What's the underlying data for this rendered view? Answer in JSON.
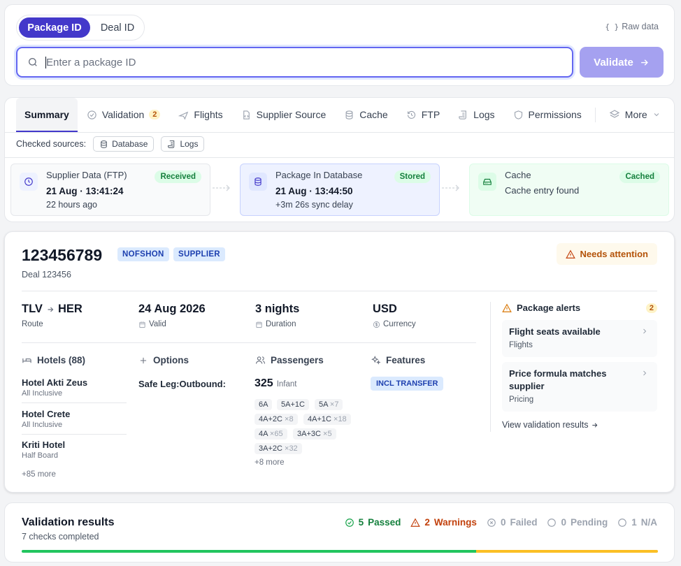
{
  "search": {
    "mode_tabs": [
      "Package ID",
      "Deal ID"
    ],
    "raw_data_label": "Raw data",
    "placeholder": "Enter a package ID",
    "value": "",
    "validate_label": "Validate"
  },
  "tabs": {
    "items": [
      "Summary",
      "Validation",
      "Flights",
      "Supplier Source",
      "Cache",
      "FTP",
      "Logs",
      "Permissions"
    ],
    "validation_count": "2",
    "more_label": "More"
  },
  "sources": {
    "label": "Checked sources:",
    "chips": [
      "Database",
      "Logs"
    ]
  },
  "stages": [
    {
      "title": "Supplier Data (FTP)",
      "time": "21 Aug · 13:41:24",
      "sub": "22 hours ago",
      "badge": "Received"
    },
    {
      "title": "Package In Database",
      "time": "21 Aug · 13:44:50",
      "sub": "+3m 26s sync delay",
      "badge": "Stored"
    },
    {
      "title": "Cache",
      "sub": "Cache entry found",
      "badge": "Cached"
    }
  ],
  "package": {
    "id": "123456789",
    "tags": [
      "NOFSHON",
      "SUPPLIER"
    ],
    "deal": "Deal 123456",
    "attention": "Needs attention",
    "route": {
      "from": "TLV",
      "to": "HER",
      "label": "Route"
    },
    "valid": {
      "value": "24 Aug 2026",
      "label": "Valid"
    },
    "duration": {
      "value": "3 nights",
      "label": "Duration"
    },
    "currency": {
      "value": "USD",
      "label": "Currency"
    },
    "hotels": {
      "title": "Hotels (88)",
      "items": [
        {
          "name": "Hotel Akti Zeus",
          "board": "All Inclusive"
        },
        {
          "name": "Hotel Crete",
          "board": "All Inclusive"
        },
        {
          "name": "Kriti Hotel",
          "board": "Half Board"
        }
      ],
      "more": "+85 more"
    },
    "options": {
      "title": "Options",
      "value": "Safe Leg:Outbound:"
    },
    "passengers": {
      "title": "Passengers",
      "count": "325",
      "count_label": "Infant",
      "chips": [
        {
          "label": "6A",
          "mult": ""
        },
        {
          "label": "5A+1C",
          "mult": ""
        },
        {
          "label": "5A",
          "mult": "×7"
        },
        {
          "label": "4A+2C",
          "mult": "×8"
        },
        {
          "label": "4A+1C",
          "mult": "×18"
        },
        {
          "label": "4A",
          "mult": "×65"
        },
        {
          "label": "3A+3C",
          "mult": "×5"
        },
        {
          "label": "3A+2C",
          "mult": "×32"
        }
      ],
      "more": "+8 more"
    },
    "features": {
      "title": "Features",
      "tags": [
        "INCL TRANSFER"
      ]
    },
    "alerts": {
      "title": "Package alerts",
      "count": "2",
      "items": [
        {
          "title": "Flight seats available",
          "category": "Flights"
        },
        {
          "title": "Price formula matches supplier",
          "category": "Pricing"
        }
      ],
      "view_link": "View validation results"
    }
  },
  "validation": {
    "title": "Validation results",
    "subtitle": "7 checks completed",
    "stats": {
      "passed": {
        "count": "5",
        "label": "Passed"
      },
      "warnings": {
        "count": "2",
        "label": "Warnings"
      },
      "failed": {
        "count": "0",
        "label": "Failed"
      },
      "pending": {
        "count": "0",
        "label": "Pending"
      },
      "na": {
        "count": "1",
        "label": "N/A"
      }
    },
    "progress": {
      "passed_fraction": 0.714,
      "warning_fraction": 0.286
    }
  },
  "colors": {
    "primary": "#4338ca",
    "passed": "#16a34a",
    "warning": "#c2410c",
    "neutral": "#9ca3af"
  }
}
